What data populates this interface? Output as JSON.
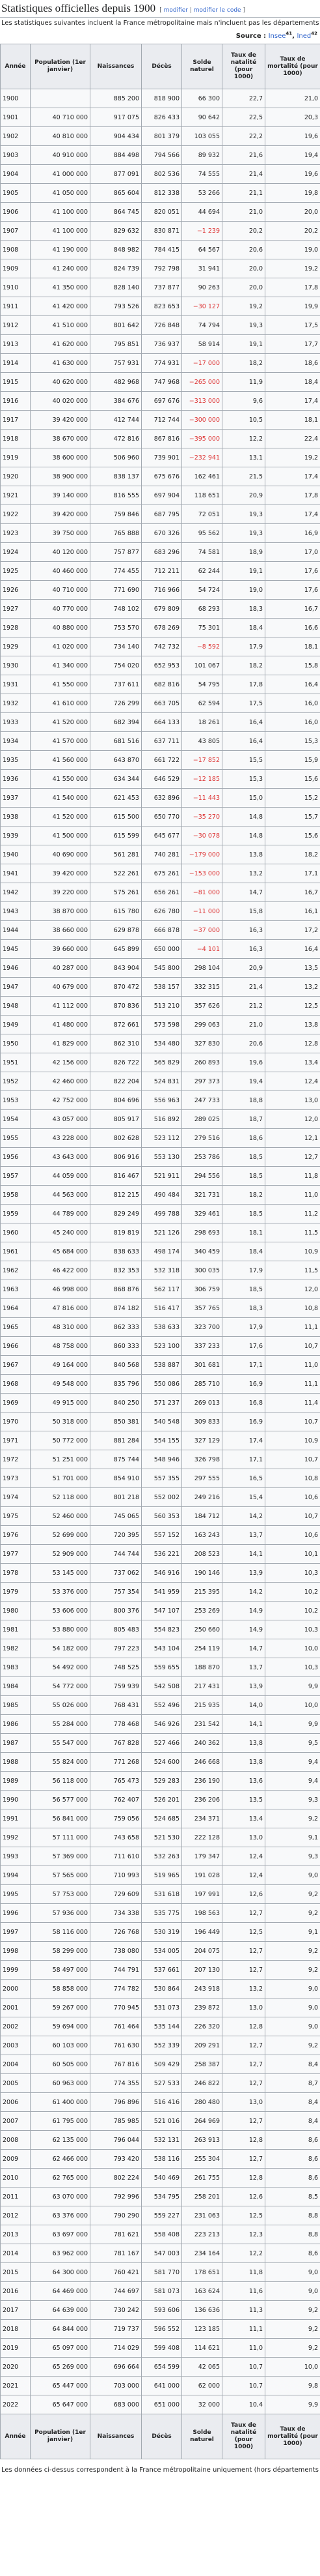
{
  "header": {
    "title": "Statistiques officielles depuis 1900",
    "edit": "modifier",
    "edit_code": "modifier le code"
  },
  "intro": "Les statistiques suivantes incluent la France métropolitaine mais n'incluent pas les départements d'outre-mer.",
  "source": {
    "label": "Source :",
    "refs": [
      {
        "text": "Insee",
        "note": "41"
      },
      {
        "text": "Ined",
        "note": "42"
      }
    ]
  },
  "table": {
    "columns": [
      "Année",
      "Population (1er janvier)",
      "Naissances",
      "Décès",
      "Solde naturel",
      "Taux de natalité (pour 1000)",
      "Taux de mortalité (pour 1000)"
    ],
    "rows": [
      [
        "1900",
        "",
        "885 200",
        "818 900",
        "66 300",
        "22,7",
        "21,0"
      ],
      [
        "1901",
        "40 710 000",
        "917 075",
        "826 433",
        "90 642",
        "22,5",
        "20,3"
      ],
      [
        "1902",
        "40 810 000",
        "904 434",
        "801 379",
        "103 055",
        "22,2",
        "19,6"
      ],
      [
        "1903",
        "40 910 000",
        "884 498",
        "794 566",
        "89 932",
        "21,6",
        "19,4"
      ],
      [
        "1904",
        "41 000 000",
        "877 091",
        "802 536",
        "74 555",
        "21,4",
        "19,6"
      ],
      [
        "1905",
        "41 050 000",
        "865 604",
        "812 338",
        "53 266",
        "21,1",
        "19,8"
      ],
      [
        "1906",
        "41 100 000",
        "864 745",
        "820 051",
        "44 694",
        "21,0",
        "20,0"
      ],
      [
        "1907",
        "41 100 000",
        "829 632",
        "830 871",
        "−1 239",
        "20,2",
        "20,2"
      ],
      [
        "1908",
        "41 190 000",
        "848 982",
        "784 415",
        "64 567",
        "20,6",
        "19,0"
      ],
      [
        "1909",
        "41 240 000",
        "824 739",
        "792 798",
        "31 941",
        "20,0",
        "19,2"
      ],
      [
        "1910",
        "41 350 000",
        "828 140",
        "737 877",
        "90 263",
        "20,0",
        "17,8"
      ],
      [
        "1911",
        "41 420 000",
        "793 526",
        "823 653",
        "−30 127",
        "19,2",
        "19,9"
      ],
      [
        "1912",
        "41 510 000",
        "801 642",
        "726 848",
        "74 794",
        "19,3",
        "17,5"
      ],
      [
        "1913",
        "41 620 000",
        "795 851",
        "736 937",
        "58 914",
        "19,1",
        "17,7"
      ],
      [
        "1914",
        "41 630 000",
        "757 931",
        "774 931",
        "−17 000",
        "18,2",
        "18,6"
      ],
      [
        "1915",
        "40 620 000",
        "482 968",
        "747 968",
        "−265 000",
        "11,9",
        "18,4"
      ],
      [
        "1916",
        "40 020 000",
        "384 676",
        "697 676",
        "−313 000",
        "9,6",
        "17,4"
      ],
      [
        "1917",
        "39 420 000",
        "412 744",
        "712 744",
        "−300 000",
        "10,5",
        "18,1"
      ],
      [
        "1918",
        "38 670 000",
        "472 816",
        "867 816",
        "−395 000",
        "12,2",
        "22,4"
      ],
      [
        "1919",
        "38 600 000",
        "506 960",
        "739 901",
        "−232 941",
        "13,1",
        "19,2"
      ],
      [
        "1920",
        "38 900 000",
        "838 137",
        "675 676",
        "162 461",
        "21,5",
        "17,4"
      ],
      [
        "1921",
        "39 140 000",
        "816 555",
        "697 904",
        "118 651",
        "20,9",
        "17,8"
      ],
      [
        "1922",
        "39 420 000",
        "759 846",
        "687 795",
        "72 051",
        "19,3",
        "17,4"
      ],
      [
        "1923",
        "39 750 000",
        "765 888",
        "670 326",
        "95 562",
        "19,3",
        "16,9"
      ],
      [
        "1924",
        "40 120 000",
        "757 877",
        "683 296",
        "74 581",
        "18,9",
        "17,0"
      ],
      [
        "1925",
        "40 460 000",
        "774 455",
        "712 211",
        "62 244",
        "19,1",
        "17,6"
      ],
      [
        "1926",
        "40 710 000",
        "771 690",
        "716 966",
        "54 724",
        "19,0",
        "17,6"
      ],
      [
        "1927",
        "40 770 000",
        "748 102",
        "679 809",
        "68 293",
        "18,3",
        "16,7"
      ],
      [
        "1928",
        "40 880 000",
        "753 570",
        "678 269",
        "75 301",
        "18,4",
        "16,6"
      ],
      [
        "1929",
        "41 020 000",
        "734 140",
        "742 732",
        "−8 592",
        "17,9",
        "18,1"
      ],
      [
        "1930",
        "41 340 000",
        "754 020",
        "652 953",
        "101 067",
        "18,2",
        "15,8"
      ],
      [
        "1931",
        "41 550 000",
        "737 611",
        "682 816",
        "54 795",
        "17,8",
        "16,4"
      ],
      [
        "1932",
        "41 610 000",
        "726 299",
        "663 705",
        "62 594",
        "17,5",
        "16,0"
      ],
      [
        "1933",
        "41 520 000",
        "682 394",
        "664 133",
        "18 261",
        "16,4",
        "16,0"
      ],
      [
        "1934",
        "41 570 000",
        "681 516",
        "637 711",
        "43 805",
        "16,4",
        "15,3"
      ],
      [
        "1935",
        "41 560 000",
        "643 870",
        "661 722",
        "−17 852",
        "15,5",
        "15,9"
      ],
      [
        "1936",
        "41 550 000",
        "634 344",
        "646 529",
        "−12 185",
        "15,3",
        "15,6"
      ],
      [
        "1937",
        "41 540 000",
        "621 453",
        "632 896",
        "−11 443",
        "15,0",
        "15,2"
      ],
      [
        "1938",
        "41 520 000",
        "615 500",
        "650 770",
        "−35 270",
        "14,8",
        "15,7"
      ],
      [
        "1939",
        "41 500 000",
        "615 599",
        "645 677",
        "−30 078",
        "14,8",
        "15,6"
      ],
      [
        "1940",
        "40 690 000",
        "561 281",
        "740 281",
        "−179 000",
        "13,8",
        "18,2"
      ],
      [
        "1941",
        "39 420 000",
        "522 261",
        "675 261",
        "−153 000",
        "13,2",
        "17,1"
      ],
      [
        "1942",
        "39 220 000",
        "575 261",
        "656 261",
        "−81 000",
        "14,7",
        "16,7"
      ],
      [
        "1943",
        "38 870 000",
        "615 780",
        "626 780",
        "−11 000",
        "15,8",
        "16,1"
      ],
      [
        "1944",
        "38 660 000",
        "629 878",
        "666 878",
        "−37 000",
        "16,3",
        "17,2"
      ],
      [
        "1945",
        "39 660 000",
        "645 899",
        "650 000",
        "−4 101",
        "16,3",
        "16,4"
      ],
      [
        "1946",
        "40 287 000",
        "843 904",
        "545 800",
        "298 104",
        "20,9",
        "13,5"
      ],
      [
        "1947",
        "40 679 000",
        "870 472",
        "538 157",
        "332 315",
        "21,4",
        "13,2"
      ],
      [
        "1948",
        "41 112 000",
        "870 836",
        "513 210",
        "357 626",
        "21,2",
        "12,5"
      ],
      [
        "1949",
        "41 480 000",
        "872 661",
        "573 598",
        "299 063",
        "21,0",
        "13,8"
      ],
      [
        "1950",
        "41 829 000",
        "862 310",
        "534 480",
        "327 830",
        "20,6",
        "12,8"
      ],
      [
        "1951",
        "42 156 000",
        "826 722",
        "565 829",
        "260 893",
        "19,6",
        "13,4"
      ],
      [
        "1952",
        "42 460 000",
        "822 204",
        "524 831",
        "297 373",
        "19,4",
        "12,4"
      ],
      [
        "1953",
        "42 752 000",
        "804 696",
        "556 963",
        "247 733",
        "18,8",
        "13,0"
      ],
      [
        "1954",
        "43 057 000",
        "805 917",
        "516 892",
        "289 025",
        "18,7",
        "12,0"
      ],
      [
        "1955",
        "43 228 000",
        "802 628",
        "523 112",
        "279 516",
        "18,6",
        "12,1"
      ],
      [
        "1956",
        "43 643 000",
        "806 916",
        "553 130",
        "253 786",
        "18,5",
        "12,7"
      ],
      [
        "1957",
        "44 059 000",
        "816 467",
        "521 911",
        "294 556",
        "18,5",
        "11,8"
      ],
      [
        "1958",
        "44 563 000",
        "812 215",
        "490 484",
        "321 731",
        "18,2",
        "11,0"
      ],
      [
        "1959",
        "44 789 000",
        "829 249",
        "499 788",
        "329 461",
        "18,5",
        "11,2"
      ],
      [
        "1960",
        "45 240 000",
        "819 819",
        "521 126",
        "298 693",
        "18,1",
        "11,5"
      ],
      [
        "1961",
        "45 684 000",
        "838 633",
        "498 174",
        "340 459",
        "18,4",
        "10,9"
      ],
      [
        "1962",
        "46 422 000",
        "832 353",
        "532 318",
        "300 035",
        "17,9",
        "11,5"
      ],
      [
        "1963",
        "46 998 000",
        "868 876",
        "562 117",
        "306 759",
        "18,5",
        "12,0"
      ],
      [
        "1964",
        "47 816 000",
        "874 182",
        "516 417",
        "357 765",
        "18,3",
        "10,8"
      ],
      [
        "1965",
        "48 310 000",
        "862 333",
        "538 633",
        "323 700",
        "17,9",
        "11,1"
      ],
      [
        "1966",
        "48 758 000",
        "860 333",
        "523 100",
        "337 233",
        "17,6",
        "10,7"
      ],
      [
        "1967",
        "49 164 000",
        "840 568",
        "538 887",
        "301 681",
        "17,1",
        "11,0"
      ],
      [
        "1968",
        "49 548 000",
        "835 796",
        "550 086",
        "285 710",
        "16,9",
        "11,1"
      ],
      [
        "1969",
        "49 915 000",
        "840 250",
        "571 237",
        "269 013",
        "16,8",
        "11,4"
      ],
      [
        "1970",
        "50 318 000",
        "850 381",
        "540 548",
        "309 833",
        "16,9",
        "10,7"
      ],
      [
        "1971",
        "50 772 000",
        "881 284",
        "554 155",
        "327 129",
        "17,4",
        "10,9"
      ],
      [
        "1972",
        "51 251 000",
        "875 744",
        "548 946",
        "326 798",
        "17,1",
        "10,7"
      ],
      [
        "1973",
        "51 701 000",
        "854 910",
        "557 355",
        "297 555",
        "16,5",
        "10,8"
      ],
      [
        "1974",
        "52 118 000",
        "801 218",
        "552 002",
        "249 216",
        "15,4",
        "10,6"
      ],
      [
        "1975",
        "52 460 000",
        "745 065",
        "560 353",
        "184 712",
        "14,2",
        "10,7"
      ],
      [
        "1976",
        "52 699 000",
        "720 395",
        "557 152",
        "163 243",
        "13,7",
        "10,6"
      ],
      [
        "1977",
        "52 909 000",
        "744 744",
        "536 221",
        "208 523",
        "14,1",
        "10,1"
      ],
      [
        "1978",
        "53 145 000",
        "737 062",
        "546 916",
        "190 146",
        "13,9",
        "10,3"
      ],
      [
        "1979",
        "53 376 000",
        "757 354",
        "541 959",
        "215 395",
        "14,2",
        "10,2"
      ],
      [
        "1980",
        "53 606 000",
        "800 376",
        "547 107",
        "253 269",
        "14,9",
        "10,2"
      ],
      [
        "1981",
        "53 880 000",
        "805 483",
        "554 823",
        "250 660",
        "14,9",
        "10,3"
      ],
      [
        "1982",
        "54 182 000",
        "797 223",
        "543 104",
        "254 119",
        "14,7",
        "10,0"
      ],
      [
        "1983",
        "54 492 000",
        "748 525",
        "559 655",
        "188 870",
        "13,7",
        "10,3"
      ],
      [
        "1984",
        "54 772 000",
        "759 939",
        "542 508",
        "217 431",
        "13,9",
        "9,9"
      ],
      [
        "1985",
        "55 026 000",
        "768 431",
        "552 496",
        "215 935",
        "14,0",
        "10,0"
      ],
      [
        "1986",
        "55 284 000",
        "778 468",
        "546 926",
        "231 542",
        "14,1",
        "9,9"
      ],
      [
        "1987",
        "55 547 000",
        "767 828",
        "527 466",
        "240 362",
        "13,8",
        "9,5"
      ],
      [
        "1988",
        "55 824 000",
        "771 268",
        "524 600",
        "246 668",
        "13,8",
        "9,4"
      ],
      [
        "1989",
        "56 118 000",
        "765 473",
        "529 283",
        "236 190",
        "13,6",
        "9,4"
      ],
      [
        "1990",
        "56 577 000",
        "762 407",
        "526 201",
        "236 206",
        "13,5",
        "9,3"
      ],
      [
        "1991",
        "56 841 000",
        "759 056",
        "524 685",
        "234 371",
        "13,4",
        "9,2"
      ],
      [
        "1992",
        "57 111 000",
        "743 658",
        "521 530",
        "222 128",
        "13,0",
        "9,1"
      ],
      [
        "1993",
        "57 369 000",
        "711 610",
        "532 263",
        "179 347",
        "12,4",
        "9,3"
      ],
      [
        "1994",
        "57 565 000",
        "710 993",
        "519 965",
        "191 028",
        "12,4",
        "9,0"
      ],
      [
        "1995",
        "57 753 000",
        "729 609",
        "531 618",
        "197 991",
        "12,6",
        "9,2"
      ],
      [
        "1996",
        "57 936 000",
        "734 338",
        "535 775",
        "198 563",
        "12,7",
        "9,2"
      ],
      [
        "1997",
        "58 116 000",
        "726 768",
        "530 319",
        "196 449",
        "12,5",
        "9,1"
      ],
      [
        "1998",
        "58 299 000",
        "738 080",
        "534 005",
        "204 075",
        "12,7",
        "9,2"
      ],
      [
        "1999",
        "58 497 000",
        "744 791",
        "537 661",
        "207 130",
        "12,7",
        "9,2"
      ],
      [
        "2000",
        "58 858 000",
        "774 782",
        "530 864",
        "243 918",
        "13,2",
        "9,0"
      ],
      [
        "2001",
        "59 267 000",
        "770 945",
        "531 073",
        "239 872",
        "13,0",
        "9,0"
      ],
      [
        "2002",
        "59 694 000",
        "761 464",
        "535 144",
        "226 320",
        "12,8",
        "9,0"
      ],
      [
        "2003",
        "60 103 000",
        "761 630",
        "552 339",
        "209 291",
        "12,7",
        "9,2"
      ],
      [
        "2004",
        "60 505 000",
        "767 816",
        "509 429",
        "258 387",
        "12,7",
        "8,4"
      ],
      [
        "2005",
        "60 963 000",
        "774 355",
        "527 533",
        "246 822",
        "12,7",
        "8,7"
      ],
      [
        "2006",
        "61 400 000",
        "796 896",
        "516 416",
        "280 480",
        "13,0",
        "8,4"
      ],
      [
        "2007",
        "61 795 000",
        "785 985",
        "521 016",
        "264 969",
        "12,7",
        "8,4"
      ],
      [
        "2008",
        "62 135 000",
        "796 044",
        "532 131",
        "263 913",
        "12,8",
        "8,6"
      ],
      [
        "2009",
        "62 466 000",
        "793 420",
        "538 116",
        "255 304",
        "12,7",
        "8,6"
      ],
      [
        "2010",
        "62 765 000",
        "802 224",
        "540 469",
        "261 755",
        "12,8",
        "8,6"
      ],
      [
        "2011",
        "63 070 000",
        "792 996",
        "534 795",
        "258 201",
        "12,6",
        "8,5"
      ],
      [
        "2012",
        "63 376 000",
        "790 290",
        "559 227",
        "231 063",
        "12,5",
        "8,8"
      ],
      [
        "2013",
        "63 697 000",
        "781 621",
        "558 408",
        "223 213",
        "12,3",
        "8,8"
      ],
      [
        "2014",
        "63 962 000",
        "781 167",
        "547 003",
        "234 164",
        "12,2",
        "8,6"
      ],
      [
        "2015",
        "64 300 000",
        "760 421",
        "581 770",
        "178 651",
        "11,8",
        "9,0"
      ],
      [
        "2016",
        "64 469 000",
        "744 697",
        "581 073",
        "163 624",
        "11,6",
        "9,0"
      ],
      [
        "2017",
        "64 639 000",
        "730 242",
        "593 606",
        "136 636",
        "11,3",
        "9,2"
      ],
      [
        "2018",
        "64 844 000",
        "719 737",
        "596 552",
        "123 185",
        "11,1",
        "9,2"
      ],
      [
        "2019",
        "65 097 000",
        "714 029",
        "599 408",
        "114 621",
        "11,0",
        "9,2"
      ],
      [
        "2020",
        "65 269 000",
        "696 664",
        "654 599",
        "42 065",
        "10,7",
        "10,0"
      ],
      [
        "2021",
        "65 447 000",
        "703 000",
        "641 000",
        "62 000",
        "10,7",
        "9,8"
      ],
      [
        "2022",
        "65 647 000",
        "683 000",
        "651 000",
        "32 000",
        "10,4",
        "9,9"
      ]
    ]
  },
  "footnote": "Les données ci-dessus correspondent à la France métropolitaine uniquement (hors départements d'outre-mer)."
}
